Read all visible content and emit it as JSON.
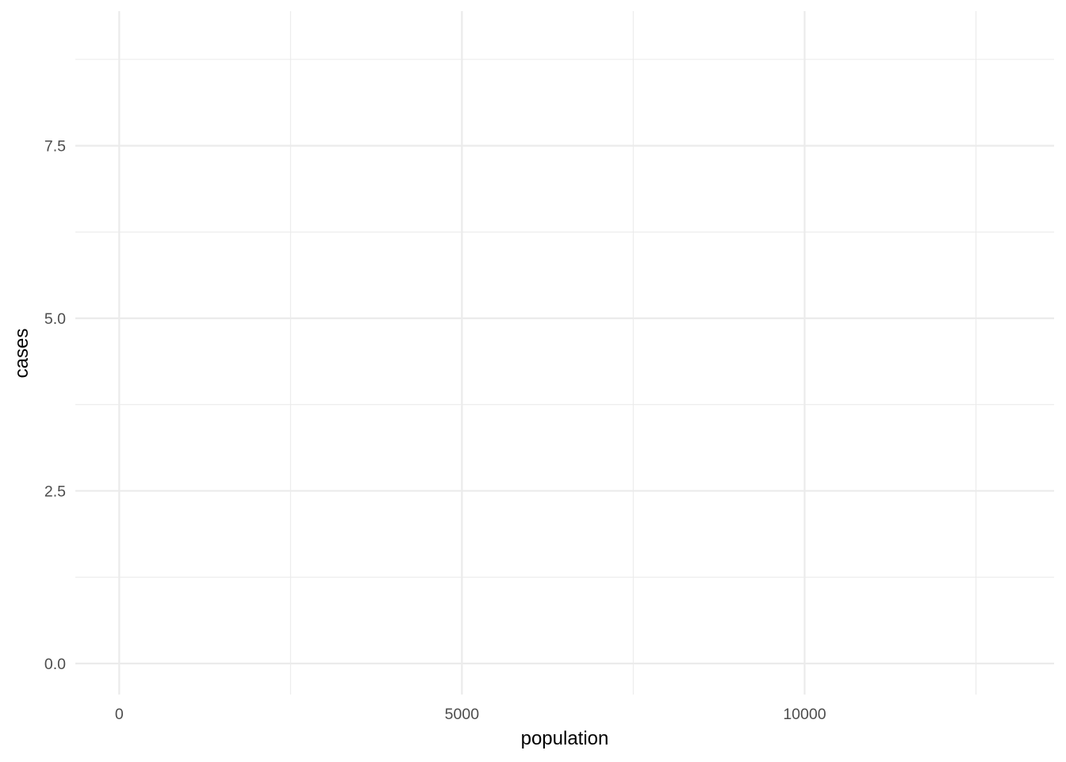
{
  "chart_data": {
    "type": "scatter",
    "title": "",
    "xlabel": "population",
    "ylabel": "cases",
    "xlim": [
      -640,
      13640
    ],
    "ylim": [
      -0.45,
      9.45
    ],
    "x_ticks": [
      0,
      5000,
      10000
    ],
    "x_tick_labels": [
      "0",
      "5000",
      "10000"
    ],
    "x_minor_ticks": [
      2500,
      7500,
      12500
    ],
    "y_ticks": [
      0,
      2.5,
      5,
      7.5
    ],
    "y_tick_labels": [
      "0.0",
      "2.5",
      "5.0",
      "7.5"
    ],
    "y_minor_ticks": [
      1.25,
      3.75,
      6.25,
      8.75
    ],
    "grid": true,
    "legend": "none",
    "series": [
      {
        "x": [],
        "y": []
      }
    ],
    "colors": {
      "background": "#ffffff",
      "grid": "#ebebeb",
      "tick_text": "#4d4d4d",
      "axis_title": "#000000"
    }
  }
}
